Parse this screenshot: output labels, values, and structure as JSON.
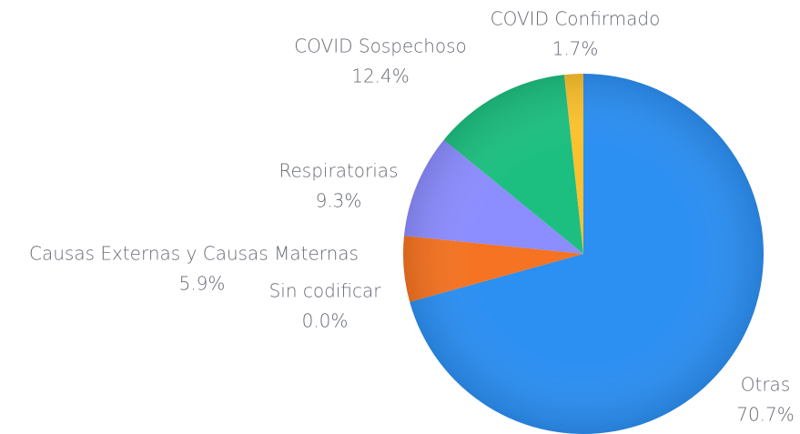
{
  "chart_data": {
    "type": "pie",
    "categories": [
      "Otras",
      "Sin codificar",
      "Causas Externas y Causas Maternas",
      "Respiratorias",
      "COVID Sospechoso",
      "COVID Confirmado"
    ],
    "values": [
      70.7,
      0.0,
      5.9,
      9.3,
      12.4,
      1.7
    ],
    "value_labels": [
      "70.7%",
      "0.0%",
      "5.9%",
      "9.3%",
      "12.4%",
      "1.7%"
    ],
    "colors": [
      "#2c8ff2",
      "#e53935",
      "#f57322",
      "#8c8dff",
      "#1dbf80",
      "#fbc12e"
    ]
  }
}
